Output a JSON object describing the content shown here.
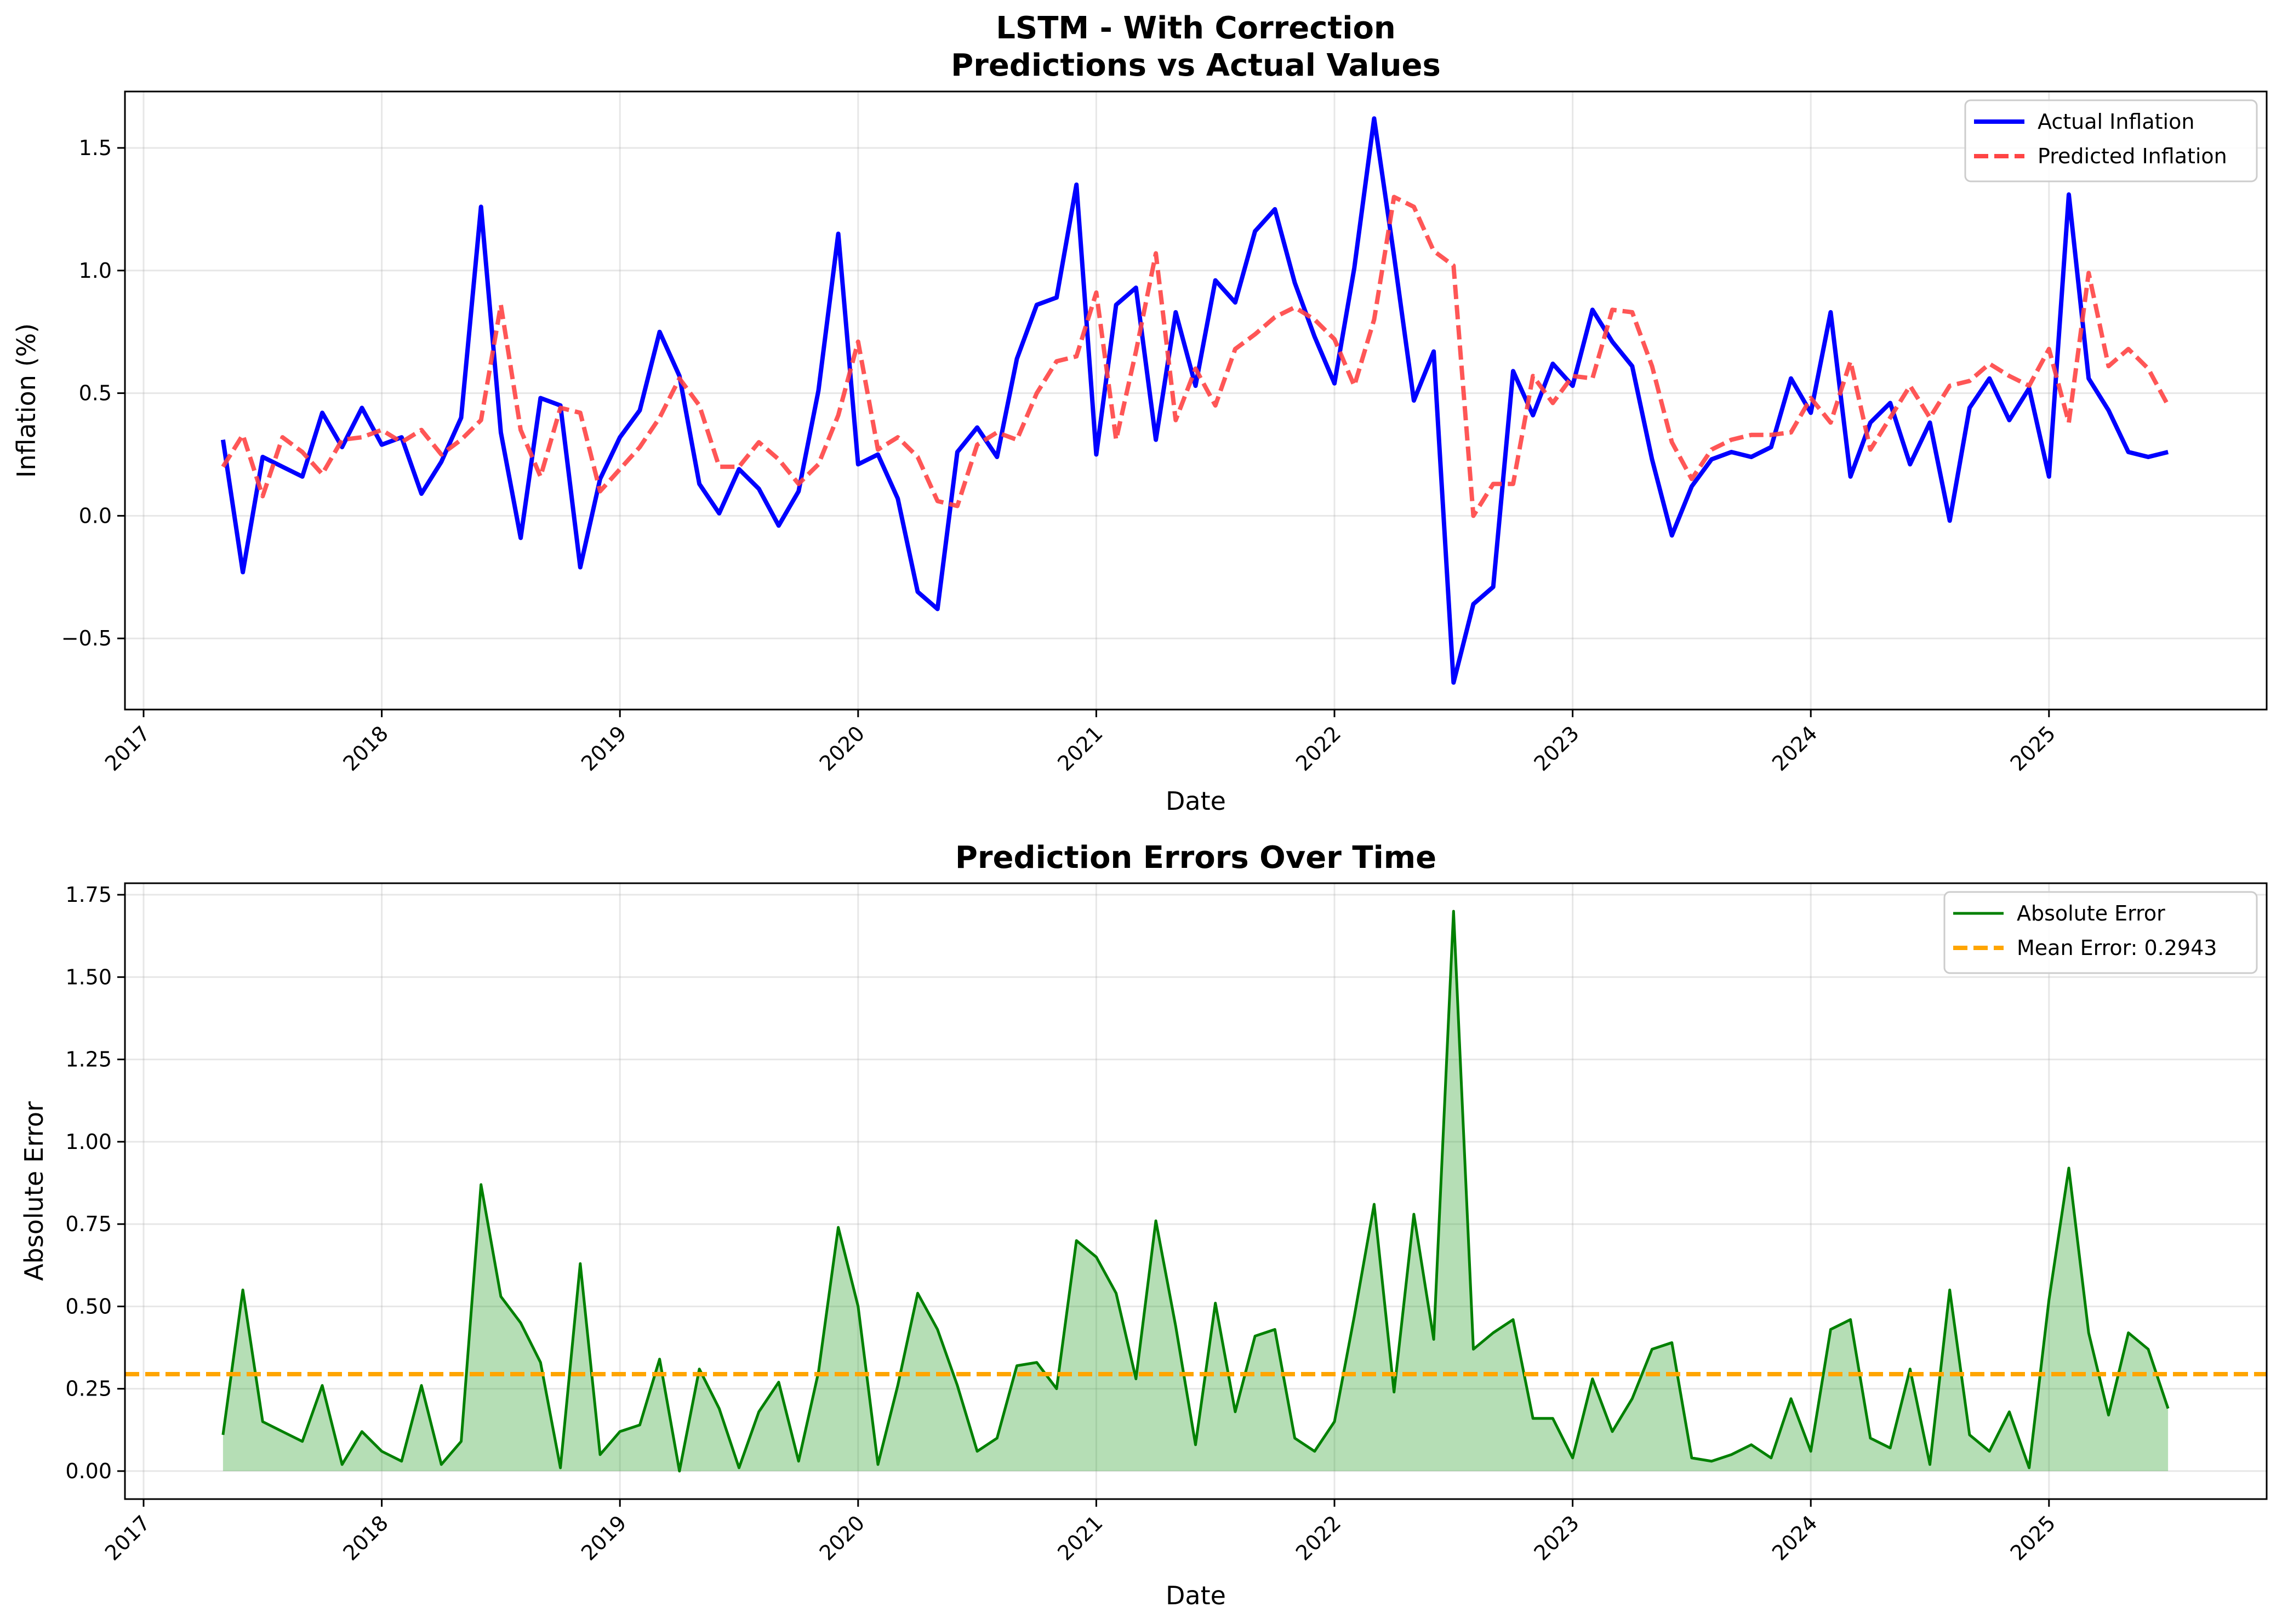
{
  "chart_data": [
    {
      "type": "line",
      "title": "LSTM - With Correction\nPredictions vs Actual Values",
      "title_lines": [
        "LSTM - With Correction",
        "Predictions vs Actual Values"
      ],
      "xlabel": "Date",
      "ylabel": "Inflation (%)",
      "x_ticks": [
        "2017",
        "2018",
        "2019",
        "2020",
        "2021",
        "2022",
        "2023",
        "2024",
        "2025"
      ],
      "y_ticks": [
        "−0.5",
        "0.0",
        "0.5",
        "1.0",
        "1.5"
      ],
      "y_tick_values": [
        -0.5,
        0.0,
        0.5,
        1.0,
        1.5
      ],
      "ylim": [
        -0.79,
        1.73
      ],
      "grid": true,
      "legend": "top-right",
      "x_start": "2017-05",
      "x_end": "2025-06",
      "x_frequency": "monthly",
      "series": [
        {
          "name": "Actual Inflation",
          "color": "#0000ff",
          "style": "solid",
          "values": [
            0.31,
            -0.23,
            0.24,
            0.2,
            0.16,
            0.42,
            0.28,
            0.44,
            0.29,
            0.32,
            0.09,
            0.22,
            0.4,
            1.26,
            0.34,
            -0.09,
            0.48,
            0.45,
            -0.21,
            0.15,
            0.32,
            0.43,
            0.75,
            0.57,
            0.13,
            0.01,
            0.19,
            0.11,
            -0.04,
            0.1,
            0.51,
            1.15,
            0.21,
            0.25,
            0.07,
            -0.31,
            -0.38,
            0.26,
            0.36,
            0.24,
            0.64,
            0.86,
            0.89,
            1.35,
            0.25,
            0.86,
            0.93,
            0.31,
            0.83,
            0.53,
            0.96,
            0.87,
            1.16,
            1.25,
            0.95,
            0.73,
            0.54,
            1.01,
            1.62,
            1.06,
            0.47,
            0.67,
            -0.68,
            -0.36,
            -0.29,
            0.59,
            0.41,
            0.62,
            0.53,
            0.84,
            0.71,
            0.61,
            0.23,
            -0.08,
            0.12,
            0.23,
            0.26,
            0.24,
            0.28,
            0.56,
            0.42,
            0.83,
            0.16,
            0.38,
            0.46,
            0.21,
            0.38,
            -0.02,
            0.44,
            0.56,
            0.39,
            0.52,
            0.16,
            1.31,
            0.56,
            0.43,
            0.26,
            0.24,
            0.26
          ]
        },
        {
          "name": "Predicted Inflation",
          "color": "#ff4444",
          "style": "dashed",
          "values": [
            0.2,
            0.33,
            0.08,
            0.32,
            0.26,
            0.17,
            0.31,
            0.32,
            0.35,
            0.3,
            0.35,
            0.25,
            0.31,
            0.39,
            0.86,
            0.35,
            0.16,
            0.44,
            0.42,
            0.1,
            0.19,
            0.28,
            0.4,
            0.56,
            0.45,
            0.2,
            0.2,
            0.3,
            0.23,
            0.13,
            0.21,
            0.41,
            0.71,
            0.27,
            0.32,
            0.24,
            0.06,
            0.04,
            0.29,
            0.34,
            0.31,
            0.5,
            0.63,
            0.65,
            0.91,
            0.31,
            0.67,
            1.07,
            0.39,
            0.6,
            0.45,
            0.68,
            0.74,
            0.81,
            0.85,
            0.8,
            0.72,
            0.53,
            0.8,
            1.3,
            1.26,
            1.08,
            1.02,
            0.0,
            0.13,
            0.13,
            0.57,
            0.46,
            0.57,
            0.56,
            0.84,
            0.83,
            0.61,
            0.3,
            0.15,
            0.27,
            0.31,
            0.33,
            0.33,
            0.34,
            0.48,
            0.38,
            0.63,
            0.27,
            0.4,
            0.53,
            0.4,
            0.53,
            0.55,
            0.62,
            0.57,
            0.53,
            0.68,
            0.38,
            0.99,
            0.61,
            0.68,
            0.6,
            0.45
          ]
        }
      ]
    },
    {
      "type": "area",
      "title": "Prediction Errors Over Time",
      "xlabel": "Date",
      "ylabel": "Absolute Error",
      "x_ticks": [
        "2017",
        "2018",
        "2019",
        "2020",
        "2021",
        "2022",
        "2023",
        "2024",
        "2025"
      ],
      "y_ticks": [
        "0.00",
        "0.25",
        "0.50",
        "0.75",
        "1.00",
        "1.25",
        "1.50",
        "1.75"
      ],
      "y_tick_values": [
        0,
        0.25,
        0.5,
        0.75,
        1.0,
        1.25,
        1.5,
        1.75
      ],
      "ylim": [
        -0.085,
        1.785
      ],
      "grid": true,
      "legend": "top-right",
      "x_start": "2017-05",
      "x_end": "2025-06",
      "x_frequency": "monthly",
      "series": [
        {
          "name": "Absolute Error",
          "color": "#008000",
          "fill_color": "#2ca02c",
          "style": "solid",
          "values": [
            0.11,
            0.55,
            0.15,
            0.12,
            0.09,
            0.26,
            0.02,
            0.12,
            0.06,
            0.03,
            0.26,
            0.02,
            0.09,
            0.87,
            0.53,
            0.45,
            0.33,
            0.01,
            0.63,
            0.05,
            0.12,
            0.14,
            0.34,
            0.0,
            0.31,
            0.19,
            0.01,
            0.18,
            0.27,
            0.03,
            0.3,
            0.74,
            0.5,
            0.02,
            0.26,
            0.54,
            0.43,
            0.26,
            0.06,
            0.1,
            0.32,
            0.33,
            0.25,
            0.7,
            0.65,
            0.54,
            0.28,
            0.76,
            0.44,
            0.08,
            0.51,
            0.18,
            0.41,
            0.43,
            0.1,
            0.06,
            0.15,
            0.47,
            0.81,
            0.24,
            0.78,
            0.4,
            1.7,
            0.37,
            0.42,
            0.46,
            0.16,
            0.16,
            0.04,
            0.28,
            0.12,
            0.22,
            0.37,
            0.39,
            0.04,
            0.03,
            0.05,
            0.08,
            0.04,
            0.22,
            0.06,
            0.43,
            0.46,
            0.1,
            0.07,
            0.31,
            0.02,
            0.55,
            0.11,
            0.06,
            0.18,
            0.01,
            0.52,
            0.92,
            0.42,
            0.17,
            0.42,
            0.37,
            0.19
          ]
        },
        {
          "name": "Mean Error: 0.2943",
          "color": "#ffa500",
          "style": "dashed",
          "constant": 0.2943
        }
      ]
    }
  ]
}
